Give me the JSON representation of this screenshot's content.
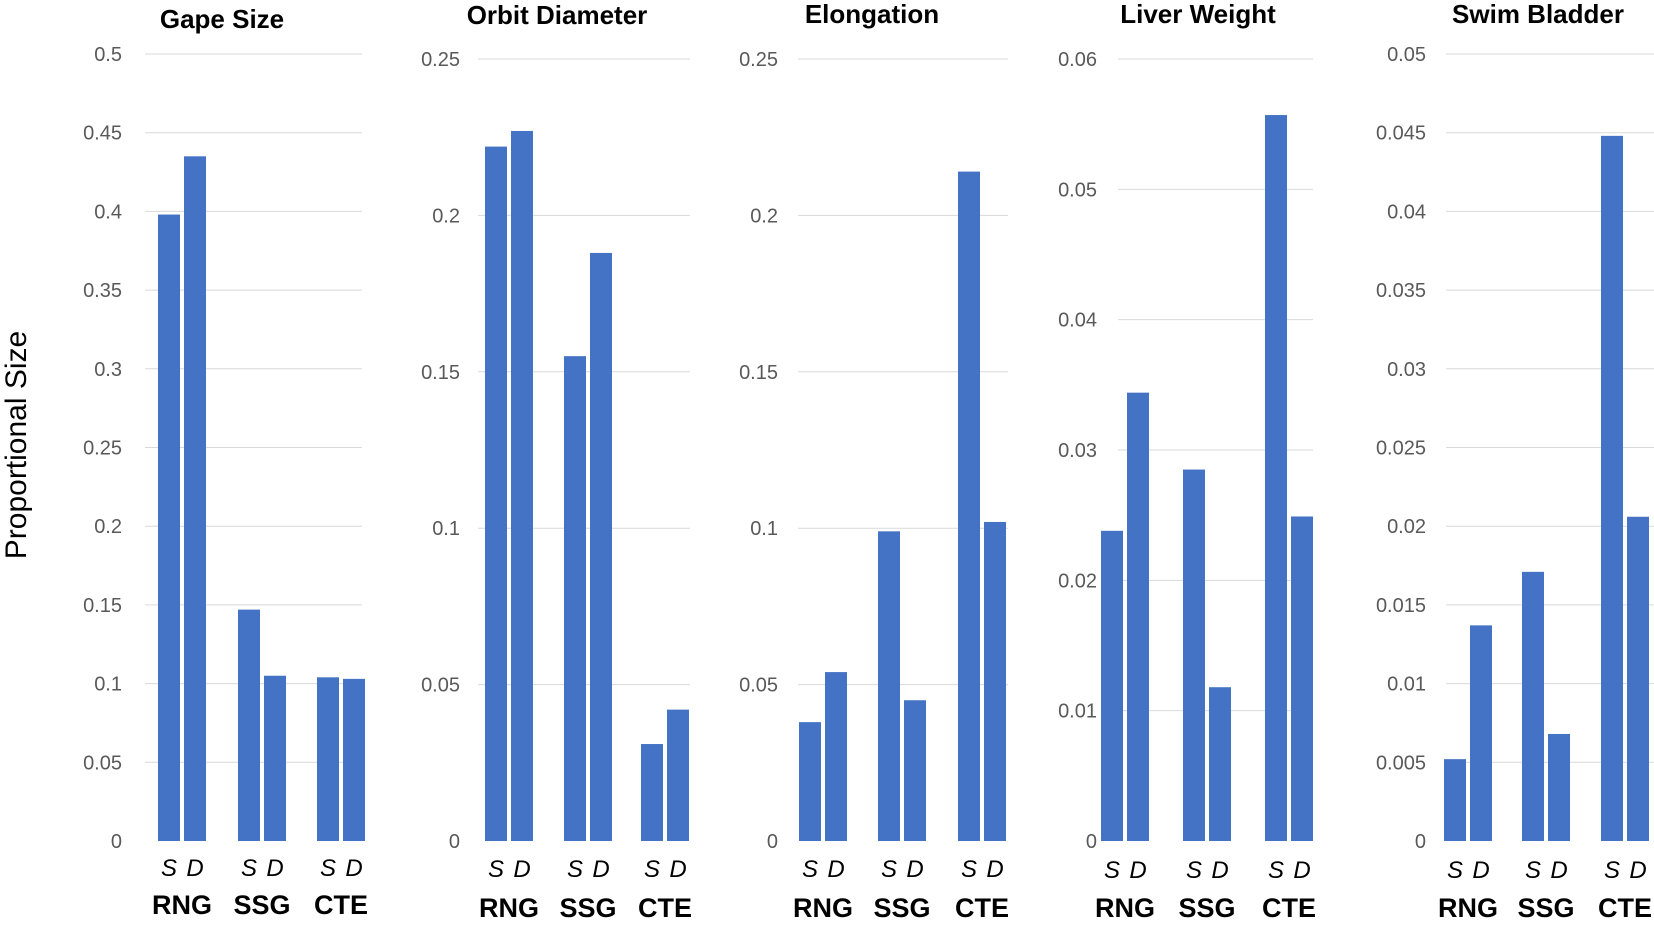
{
  "y_axis_label": "Proportional Size",
  "bar_color": "#4472c4",
  "chart_data": [
    {
      "type": "bar",
      "title": "Gape Size",
      "ylabel": "Proportional Size",
      "ylim": [
        0,
        0.5
      ],
      "yticks": [
        "0",
        "0.05",
        "0.1",
        "0.15",
        "0.2",
        "0.25",
        "0.3",
        "0.35",
        "0.4",
        "0.45",
        "0.5"
      ],
      "groups": [
        "RNG",
        "SSG",
        "CTE"
      ],
      "subcategories": [
        "S",
        "D"
      ],
      "series": [
        {
          "name": "S",
          "values": [
            0.398,
            0.147,
            0.104
          ]
        },
        {
          "name": "D",
          "values": [
            0.435,
            0.105,
            0.103
          ]
        }
      ]
    },
    {
      "type": "bar",
      "title": "Orbit Diameter",
      "ylabel": "Proportional Size",
      "ylim": [
        0,
        0.25
      ],
      "yticks": [
        "0",
        "0.05",
        "0.1",
        "0.15",
        "0.2",
        "0.25"
      ],
      "groups": [
        "RNG",
        "SSG",
        "CTE"
      ],
      "subcategories": [
        "S",
        "D"
      ],
      "series": [
        {
          "name": "S",
          "values": [
            0.222,
            0.155,
            0.031
          ]
        },
        {
          "name": "D",
          "values": [
            0.227,
            0.188,
            0.042
          ]
        }
      ]
    },
    {
      "type": "bar",
      "title": "Elongation",
      "ylabel": "Proportional Size",
      "ylim": [
        0,
        0.25
      ],
      "yticks": [
        "0",
        "0.05",
        "0.1",
        "0.15",
        "0.2",
        "0.25"
      ],
      "groups": [
        "RNG",
        "SSG",
        "CTE"
      ],
      "subcategories": [
        "S",
        "D"
      ],
      "series": [
        {
          "name": "S",
          "values": [
            0.038,
            0.099,
            0.214
          ]
        },
        {
          "name": "D",
          "values": [
            0.054,
            0.045,
            0.102
          ]
        }
      ]
    },
    {
      "type": "bar",
      "title": "Liver Weight",
      "ylabel": "Proportional Size",
      "ylim": [
        0,
        0.06
      ],
      "yticks": [
        "0",
        "0.01",
        "0.02",
        "0.03",
        "0.04",
        "0.05",
        "0.06"
      ],
      "groups": [
        "RNG",
        "SSG",
        "CTE"
      ],
      "subcategories": [
        "S",
        "D"
      ],
      "series": [
        {
          "name": "S",
          "values": [
            0.0238,
            0.0285,
            0.0557
          ]
        },
        {
          "name": "D",
          "values": [
            0.0344,
            0.0118,
            0.0249
          ]
        }
      ]
    },
    {
      "type": "bar",
      "title": "Swim Bladder",
      "ylabel": "Proportional Size",
      "ylim": [
        0,
        0.05
      ],
      "yticks": [
        "0",
        "0.005",
        "0.01",
        "0.015",
        "0.02",
        "0.025",
        "0.03",
        "0.035",
        "0.04",
        "0.045",
        "0.05"
      ],
      "groups": [
        "RNG",
        "SSG",
        "CTE"
      ],
      "subcategories": [
        "S",
        "D"
      ],
      "series": [
        {
          "name": "S",
          "values": [
            0.0052,
            0.0171,
            0.0448
          ]
        },
        {
          "name": "D",
          "values": [
            0.0137,
            0.0068,
            0.0206
          ]
        }
      ]
    }
  ]
}
